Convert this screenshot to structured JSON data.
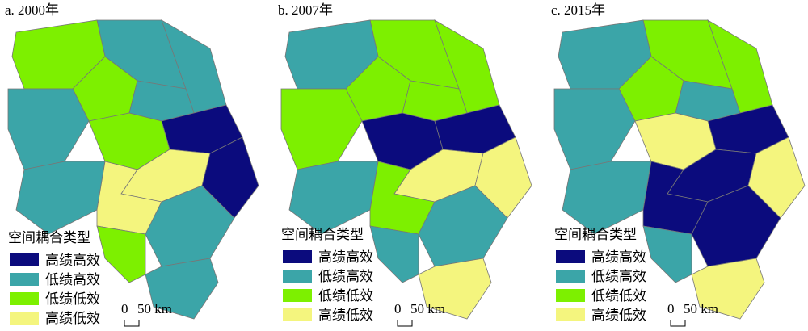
{
  "panels": [
    {
      "title": "a. 2000年"
    },
    {
      "title": "b. 2007年"
    },
    {
      "title": "c. 2015年"
    }
  ],
  "legend": {
    "title": "空间耦合类型",
    "items": [
      {
        "label": "高绩高效",
        "color": "#0b0b7d"
      },
      {
        "label": "低绩高效",
        "color": "#3ba5a8"
      },
      {
        "label": "低绩低效",
        "color": "#7df000"
      },
      {
        "label": "高绩低效",
        "color": "#f4f57e"
      }
    ]
  },
  "scale_bar": {
    "zero": "0",
    "distance": "50 km"
  }
}
